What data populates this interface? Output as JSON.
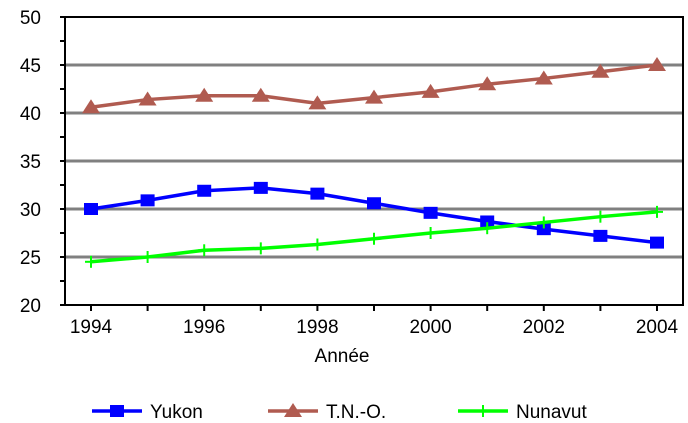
{
  "chart_data": {
    "type": "line",
    "title": "",
    "xlabel": "Année",
    "ylabel": "",
    "xlim": [
      1994,
      2004
    ],
    "ylim": [
      20,
      50
    ],
    "x_ticks": [
      1994,
      1996,
      1998,
      2000,
      2002,
      2004
    ],
    "y_ticks": [
      20,
      25,
      30,
      35,
      40,
      45,
      50
    ],
    "grid": true,
    "legend_position": "bottom",
    "x": [
      1994,
      1995,
      1996,
      1997,
      1998,
      1999,
      2000,
      2001,
      2002,
      2003,
      2004
    ],
    "series": [
      {
        "name": "Yukon",
        "color": "#0000ff",
        "marker": "square",
        "values": [
          30.0,
          30.9,
          31.9,
          32.2,
          31.6,
          30.6,
          29.6,
          28.7,
          27.9,
          27.2,
          26.5
        ]
      },
      {
        "name": "T.N.-O.",
        "color": "#b05b50",
        "marker": "triangle",
        "values": [
          40.6,
          41.4,
          41.8,
          41.8,
          41.0,
          41.6,
          42.2,
          43.0,
          43.6,
          44.3,
          45.0
        ]
      },
      {
        "name": "Nunavut",
        "color": "#00ff00",
        "marker": "plus",
        "values": [
          24.5,
          25.0,
          25.7,
          25.9,
          26.3,
          26.9,
          27.5,
          28.0,
          28.6,
          29.2,
          29.7
        ]
      }
    ]
  }
}
